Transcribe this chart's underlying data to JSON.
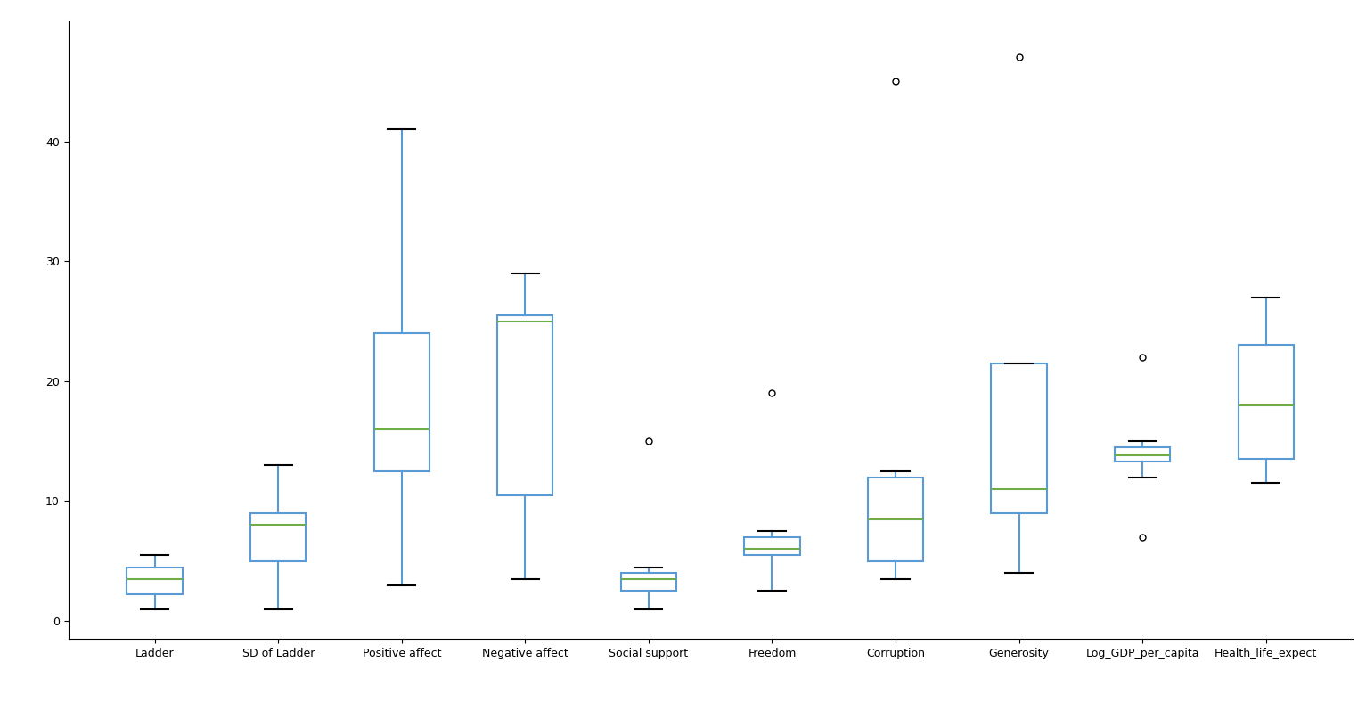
{
  "columns": [
    "Ladder",
    "SD of Ladder",
    "Positive affect",
    "Negative affect",
    "Social support",
    "Freedom",
    "Corruption",
    "Generosity",
    "Log_GDP_per_capita",
    "Health_life_expect"
  ],
  "box_data": {
    "Ladder": {
      "whislo": 1.0,
      "q1": 2.2,
      "med": 3.5,
      "q3": 4.5,
      "whishi": 5.5,
      "fliers": []
    },
    "SD of Ladder": {
      "whislo": 1.0,
      "q1": 5.0,
      "med": 8.0,
      "q3": 9.0,
      "whishi": 13.0,
      "fliers": []
    },
    "Positive affect": {
      "whislo": 3.0,
      "q1": 12.5,
      "med": 16.0,
      "q3": 24.0,
      "whishi": 41.0,
      "fliers": []
    },
    "Negative affect": {
      "whislo": 3.5,
      "q1": 10.5,
      "med": 25.0,
      "q3": 25.5,
      "whishi": 29.0,
      "fliers": []
    },
    "Social support": {
      "whislo": 1.0,
      "q1": 2.5,
      "med": 3.5,
      "q3": 4.0,
      "whishi": 4.5,
      "fliers": [
        15.0
      ]
    },
    "Freedom": {
      "whislo": 2.5,
      "q1": 5.5,
      "med": 6.0,
      "q3": 7.0,
      "whishi": 7.5,
      "fliers": [
        19.0
      ]
    },
    "Corruption": {
      "whislo": 3.5,
      "q1": 5.0,
      "med": 8.5,
      "q3": 12.0,
      "whishi": 12.5,
      "fliers": [
        45.0
      ]
    },
    "Generosity": {
      "whislo": 4.0,
      "q1": 9.0,
      "med": 11.0,
      "q3": 21.5,
      "whishi": 21.5,
      "fliers": [
        47.0
      ]
    },
    "Log_GDP_per_capita": {
      "whislo": 12.0,
      "q1": 13.3,
      "med": 13.8,
      "q3": 14.5,
      "whishi": 15.0,
      "fliers": [
        7.0,
        22.0
      ]
    },
    "Health_life_expect": {
      "whislo": 11.5,
      "q1": 13.5,
      "med": 18.0,
      "q3": 23.0,
      "whishi": 27.0,
      "fliers": []
    }
  },
  "box_color": "#5b9bd5",
  "median_color": "#70ad47",
  "background_color": "#ffffff",
  "figsize": [
    15.33,
    7.97
  ],
  "dpi": 100,
  "ylim": [
    -1.5,
    50
  ],
  "yticks": [
    0,
    10,
    20,
    30,
    40
  ],
  "box_width": 0.45
}
